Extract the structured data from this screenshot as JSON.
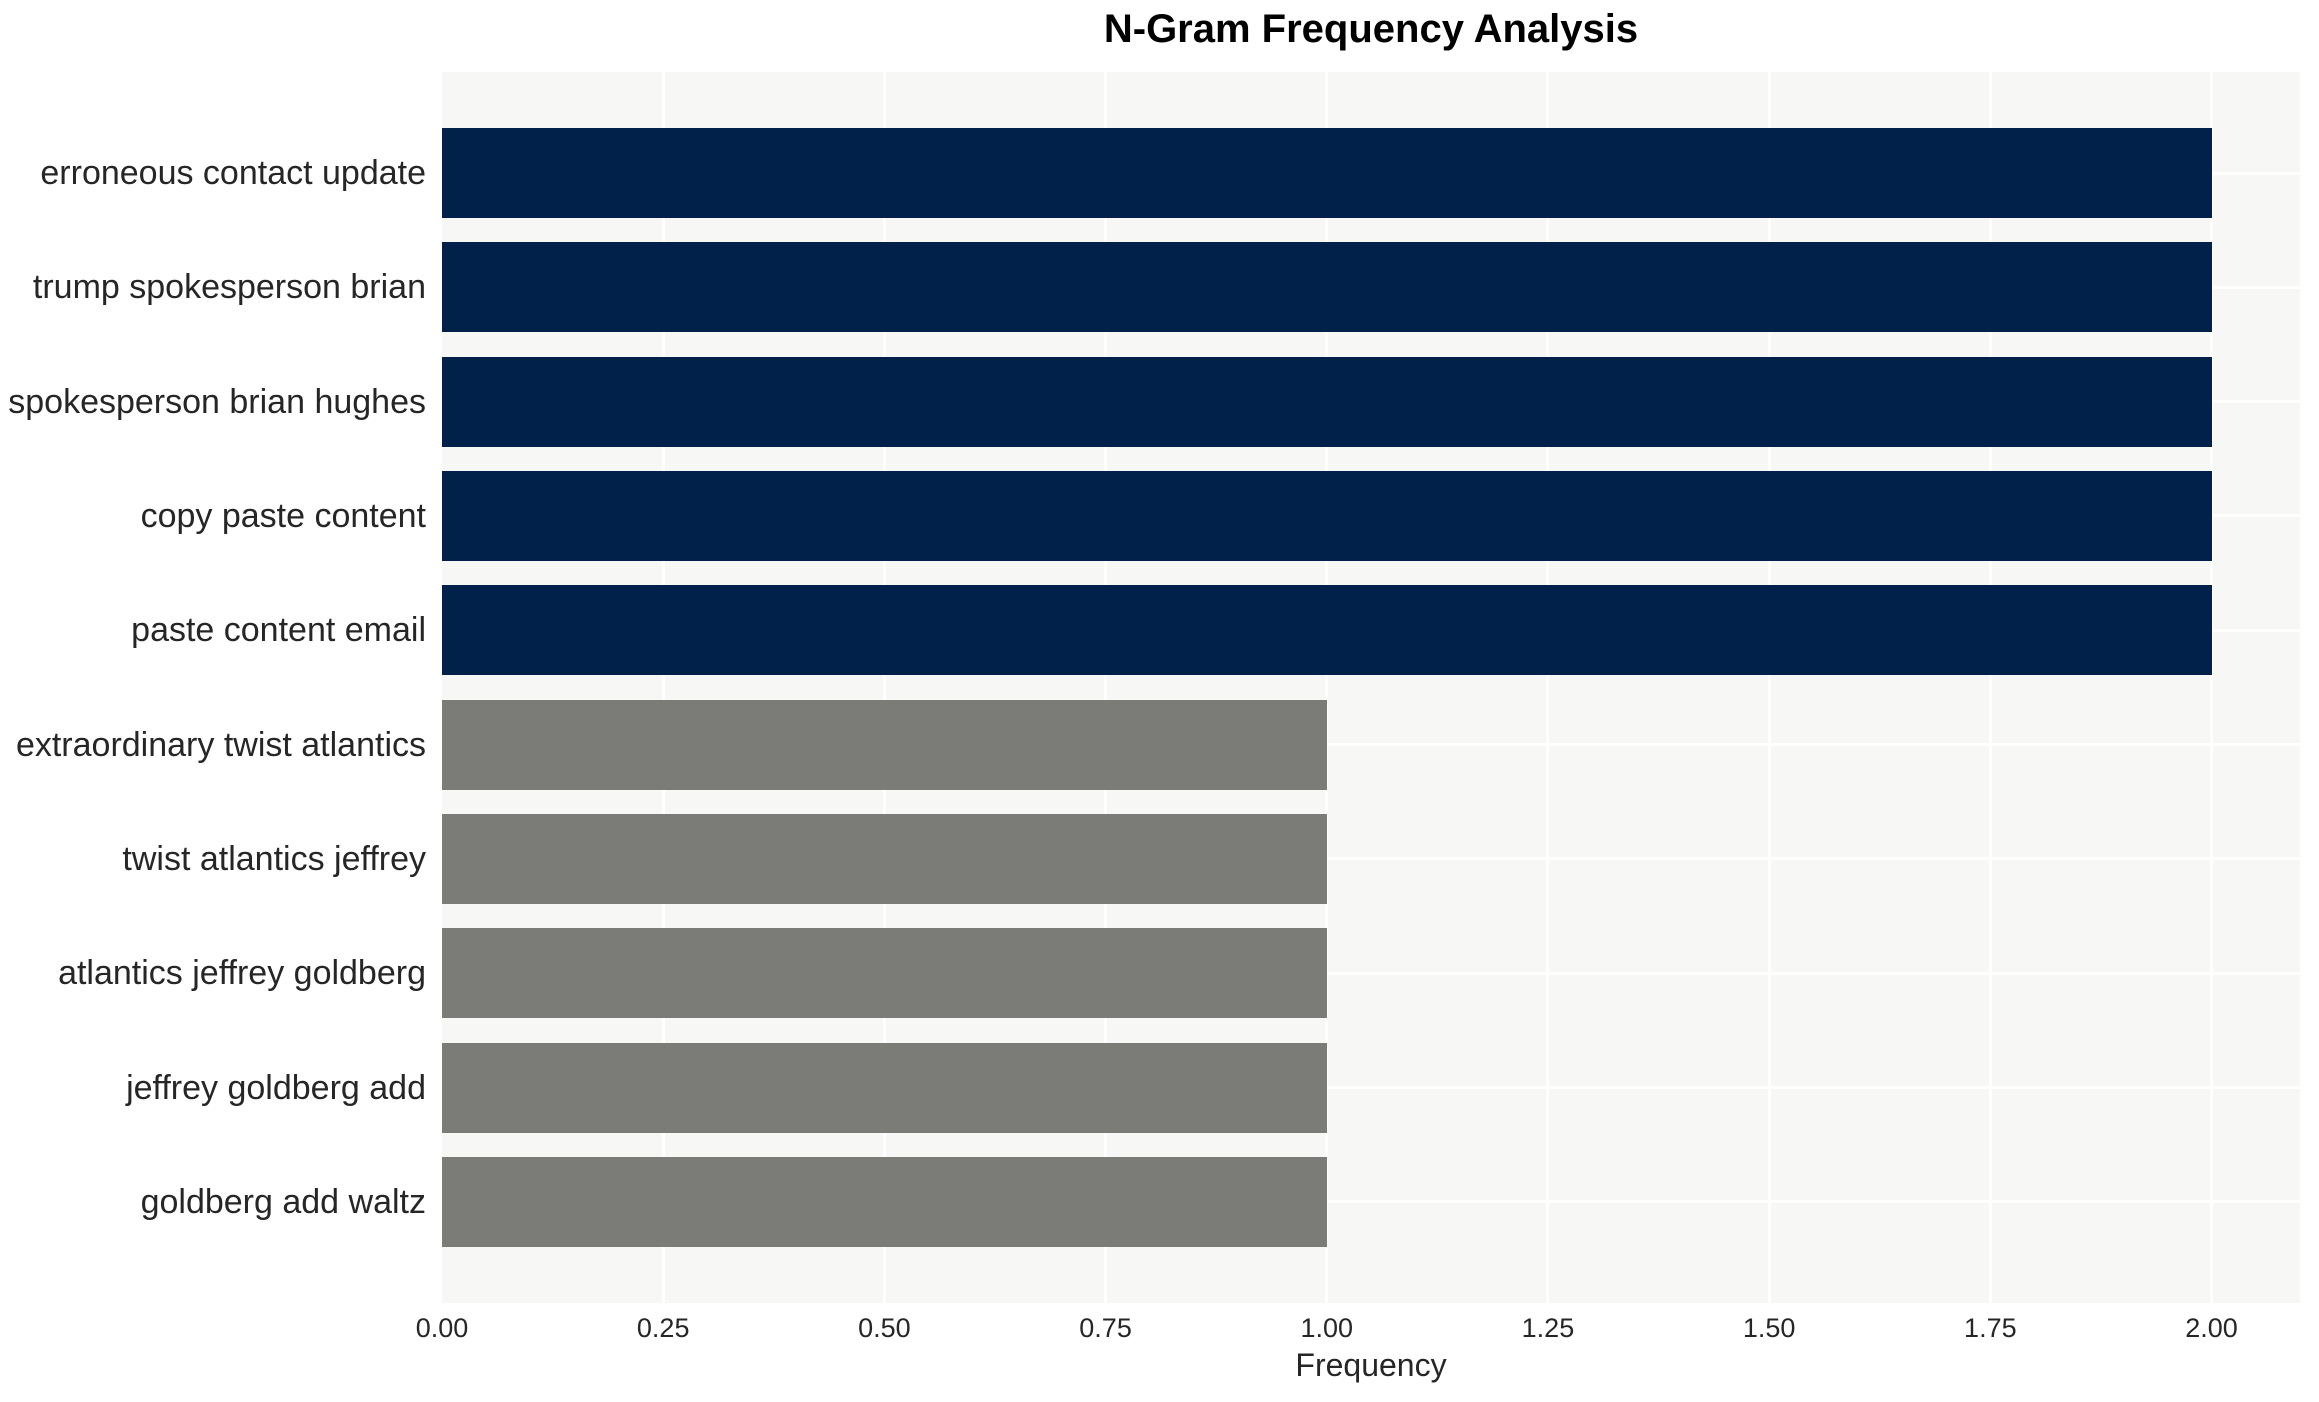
{
  "chart_data": {
    "type": "bar",
    "orientation": "horizontal",
    "title": "N-Gram Frequency Analysis",
    "xlabel": "Frequency",
    "ylabel": "",
    "categories": [
      "erroneous contact update",
      "trump spokesperson brian",
      "spokesperson brian hughes",
      "copy paste content",
      "paste content email",
      "extraordinary twist atlantics",
      "twist atlantics jeffrey",
      "atlantics jeffrey goldberg",
      "jeffrey goldberg add",
      "goldberg add waltz"
    ],
    "values": [
      2,
      2,
      2,
      2,
      2,
      1,
      1,
      1,
      1,
      1
    ],
    "bar_colors": [
      "#02214a",
      "#02214a",
      "#02214a",
      "#02214a",
      "#02214a",
      "#7b7b78",
      "#7b7b78",
      "#7b7b78",
      "#7b7b78",
      "#7b7b78"
    ],
    "xlim": [
      0,
      2.1
    ],
    "xticks": [
      0,
      0.25,
      0.5,
      0.75,
      1.0,
      1.25,
      1.5,
      1.75,
      2.0
    ],
    "xtick_labels": [
      "0.00",
      "0.25",
      "0.50",
      "0.75",
      "1.00",
      "1.25",
      "1.50",
      "1.75",
      "2.00"
    ],
    "grid": true,
    "legend_position": "none",
    "colors": {
      "high_freq_bar": "#02214a",
      "low_freq_bar": "#7b7b78",
      "plot_background": "#f7f7f6",
      "gridline": "#ffffff",
      "tick_text": "#262626",
      "title_text": "#000000"
    }
  }
}
